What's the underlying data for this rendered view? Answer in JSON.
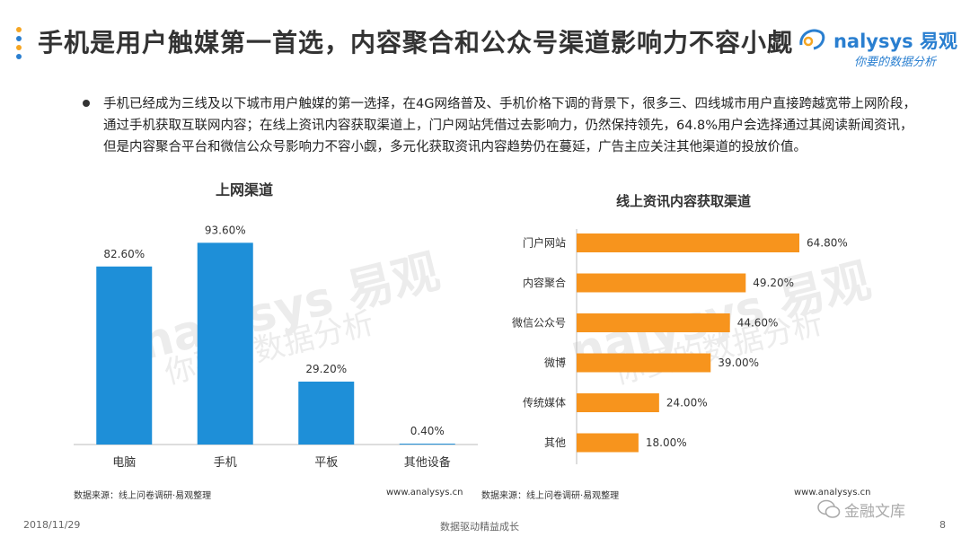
{
  "header": {
    "title": "手机是用户触媒第一首选，内容聚合和公众号渠道影响力不容小觑",
    "dot_colors": [
      "#f5a623",
      "#2a7fd0",
      "#f5a623",
      "#2a7fd0"
    ]
  },
  "logo": {
    "brand": "nalysys 易观",
    "tagline": "你要的数据分析"
  },
  "background_watermark": {
    "brand": "nalysys 易观",
    "tagline": "你要的数据分析"
  },
  "summary": {
    "text": "手机已经成为三线及以下城市用户触媒的第一选择，在4G网络普及、手机价格下调的背景下，很多三、四线城市用户直接跨越宽带上网阶段，通过手机获取互联网内容；在线上资讯内容获取渠道上，门户网站凭借过去影响力，仍然保持领先，64.8%用户会选择通过其阅读新闻资讯，但是内容聚合平台和微信公众号影响力不容小觑，多元化获取资讯内容趋势仍在蔓延，广告主应关注其他渠道的投放价值。"
  },
  "chart_data": [
    {
      "type": "bar",
      "title": "上网渠道",
      "categories": [
        "电脑",
        "手机",
        "平板",
        "其他设备"
      ],
      "values": [
        82.6,
        93.6,
        29.2,
        0.4
      ],
      "value_labels": [
        "82.60%",
        "93.60%",
        "29.20%",
        "0.40%"
      ],
      "ylim": [
        0,
        100
      ],
      "grid": false,
      "color": "#1e8fd8",
      "source": "数据来源：线上问卷调研·易观整理",
      "website": "www.analysys.cn"
    },
    {
      "type": "bar",
      "orientation": "horizontal",
      "title": "线上资讯内容获取渠道",
      "categories": [
        "门户网站",
        "内容聚合",
        "微信公众号",
        "微博",
        "传统媒体",
        "其他"
      ],
      "values": [
        64.8,
        49.2,
        44.6,
        39.0,
        24.0,
        18.0
      ],
      "value_labels": [
        "64.80%",
        "49.20%",
        "44.60%",
        "39.00%",
        "24.00%",
        "18.00%"
      ],
      "xlim": [
        0,
        64.8
      ],
      "grid": false,
      "color": "#f7941d",
      "source": "数据来源：线上问卷调研·易观整理",
      "website": "www.analysys.cn"
    }
  ],
  "footer": {
    "date": "2018/11/29",
    "slogan": "数据驱动精益成长",
    "page": "8",
    "watermark": "金融文库"
  }
}
